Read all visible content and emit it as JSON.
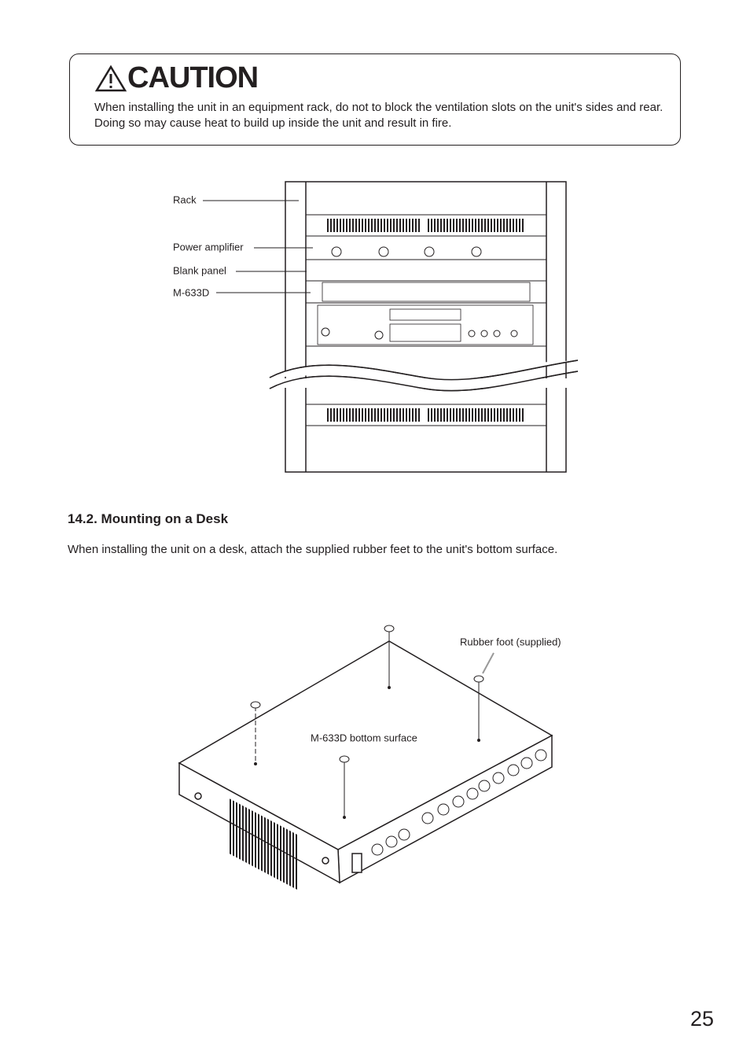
{
  "caution": {
    "title": "CAUTION",
    "text": "When installing the unit in an equipment rack, do not to block the ventilation slots on the unit's sides and rear. Doing so may cause heat to build up inside the unit and result in fire."
  },
  "rack_figure": {
    "labels": [
      "Rack",
      "Power amplifier",
      "Blank panel",
      "M-633D"
    ]
  },
  "section": {
    "heading": "14.2. Mounting on a Desk",
    "text": "When installing the unit on a desk, attach the supplied rubber feet to the unit's bottom surface."
  },
  "desk_figure": {
    "labels": [
      "Rubber foot (supplied)",
      "M-633D bottom surface"
    ]
  },
  "page_number": "25"
}
